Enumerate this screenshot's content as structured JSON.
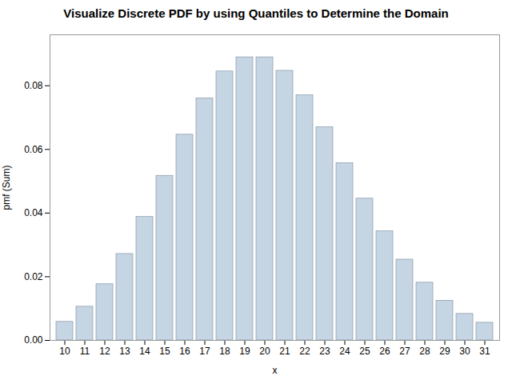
{
  "chart_data": {
    "type": "bar",
    "title": "Visualize Discrete PDF by using Quantiles to Determine the Domain",
    "xlabel": "x",
    "ylabel": "pmf (Sum)",
    "categories": [
      "10",
      "11",
      "12",
      "13",
      "14",
      "15",
      "16",
      "17",
      "18",
      "19",
      "20",
      "21",
      "22",
      "23",
      "24",
      "25",
      "26",
      "27",
      "28",
      "29",
      "30",
      "31"
    ],
    "values": [
      0.00583,
      0.01059,
      0.01765,
      0.02716,
      0.03878,
      0.05171,
      0.06463,
      0.07604,
      0.08449,
      0.08894,
      0.08894,
      0.0847,
      0.077,
      0.06696,
      0.05568,
      0.04454,
      0.03426,
      0.02539,
      0.01814,
      0.01249,
      0.00833,
      0.00555
    ],
    "color": "#c5d5e4",
    "ylim": [
      0,
      0.096
    ],
    "yticks": [
      {
        "value": 0,
        "label": "0.00"
      },
      0.02,
      0.04,
      0.06,
      0.08
    ],
    "grid": false
  }
}
